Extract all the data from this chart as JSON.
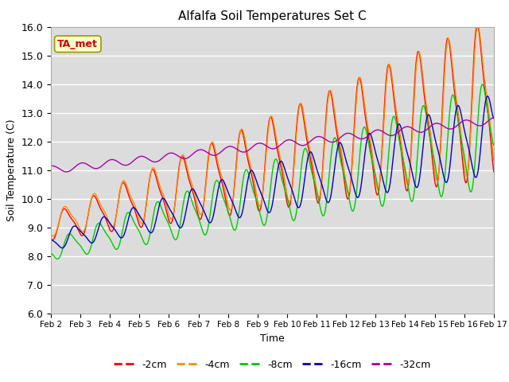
{
  "title": "Alfalfa Soil Temperatures Set C",
  "xlabel": "Time",
  "ylabel": "Soil Temperature (C)",
  "ylim": [
    6.0,
    16.0
  ],
  "yticks": [
    6.0,
    7.0,
    8.0,
    9.0,
    10.0,
    11.0,
    12.0,
    13.0,
    14.0,
    15.0,
    16.0
  ],
  "xtick_labels": [
    "Feb 2",
    "Feb 3",
    "Feb 4",
    "Feb 5",
    "Feb 6",
    "Feb 7",
    "Feb 8",
    "Feb 9",
    "Feb 10",
    "Feb 11",
    "Feb 12",
    "Feb 13",
    "Feb 14",
    "Feb 15",
    "Feb 16",
    "Feb 17"
  ],
  "line_colors": {
    "-2cm": "#ff0000",
    "-4cm": "#ff8c00",
    "-8cm": "#00cc00",
    "-16cm": "#0000cc",
    "-32cm": "#aa00aa"
  },
  "legend_labels": [
    "-2cm",
    "-4cm",
    "-8cm",
    "-16cm",
    "-32cm"
  ],
  "ta_met_label": "TA_met",
  "ta_met_color": "#cc0000",
  "ta_met_bg": "#ffffcc",
  "plot_bg": "#dcdcdc",
  "fig_bg": "#ffffff",
  "n_points": 720,
  "days": 15
}
